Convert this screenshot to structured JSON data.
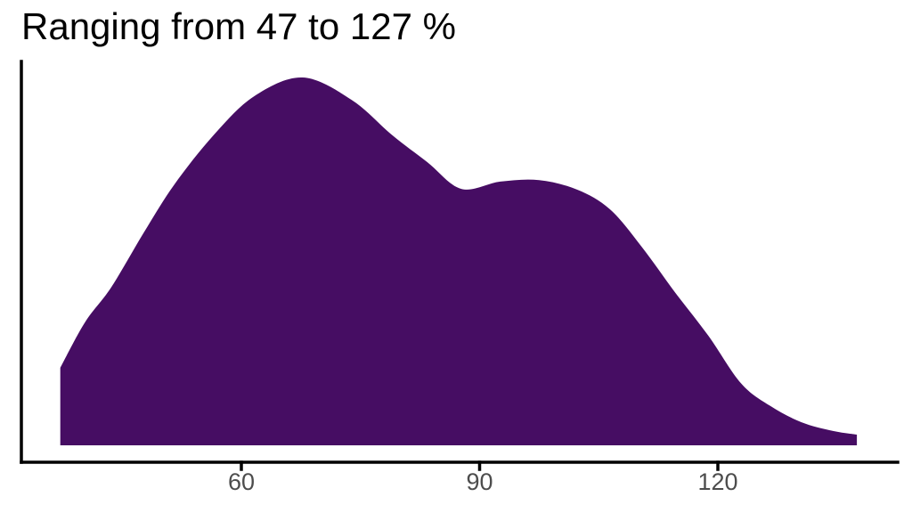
{
  "chart_data": {
    "type": "area",
    "subtype": "density",
    "title": "Ranging from 47 to 127 %",
    "xlabel": "",
    "ylabel": "",
    "unit": "%",
    "data_min": 47,
    "data_max": 127,
    "x_tick_labels": [
      "60",
      "90",
      "120"
    ],
    "x_tick_values": [
      60,
      90,
      120
    ],
    "x_axis_range": [
      32,
      143
    ],
    "y_axis_ticks": "none",
    "grid": "off",
    "legend": "none",
    "colors": {
      "fill": "#460d63",
      "axis": "#000000",
      "tick_label": "#4d4d4d",
      "title": "#000000",
      "background": "#ffffff"
    },
    "curve_points_relative_density": [
      {
        "x": 37.2,
        "y": 0.211
      },
      {
        "x": 40.3,
        "y": 0.334
      },
      {
        "x": 43.6,
        "y": 0.429
      },
      {
        "x": 47.6,
        "y": 0.574
      },
      {
        "x": 51.5,
        "y": 0.707
      },
      {
        "x": 56.5,
        "y": 0.843
      },
      {
        "x": 61.6,
        "y": 0.949
      },
      {
        "x": 67.7,
        "y": 1.0
      },
      {
        "x": 73.9,
        "y": 0.939
      },
      {
        "x": 79.0,
        "y": 0.843
      },
      {
        "x": 83.4,
        "y": 0.77
      },
      {
        "x": 87.7,
        "y": 0.697
      },
      {
        "x": 92.6,
        "y": 0.717
      },
      {
        "x": 97.5,
        "y": 0.721
      },
      {
        "x": 102.3,
        "y": 0.695
      },
      {
        "x": 106.4,
        "y": 0.642
      },
      {
        "x": 110.4,
        "y": 0.54
      },
      {
        "x": 114.6,
        "y": 0.416
      },
      {
        "x": 118.8,
        "y": 0.298
      },
      {
        "x": 122.9,
        "y": 0.169
      },
      {
        "x": 126.6,
        "y": 0.107
      },
      {
        "x": 130.5,
        "y": 0.063
      },
      {
        "x": 134.5,
        "y": 0.039
      },
      {
        "x": 137.5,
        "y": 0.029
      }
    ]
  }
}
